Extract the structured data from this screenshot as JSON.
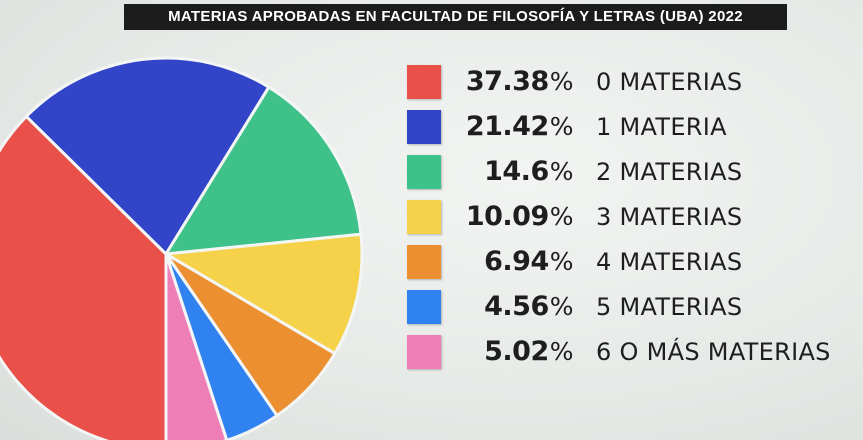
{
  "chart_data": {
    "type": "pie",
    "title": "MATERIAS APROBADAS EN FACULTAD DE FILOSOFÍA Y LETRAS (UBA) 2022",
    "percent_sign": "%",
    "legend_position": "right",
    "slices": [
      {
        "label": "0 MATERIAS",
        "value": 37.38,
        "value_text": "37.38",
        "color": "#e9504a"
      },
      {
        "label": "1 MATERIA",
        "value": 21.42,
        "value_text": "21.42",
        "color": "#3244c8"
      },
      {
        "label": "2 MATERIAS",
        "value": 14.6,
        "value_text": "14.6",
        "color": "#3ec289"
      },
      {
        "label": "3 MATERIAS",
        "value": 10.09,
        "value_text": "10.09",
        "color": "#f5d24a"
      },
      {
        "label": "4 MATERIAS",
        "value": 6.94,
        "value_text": "6.94",
        "color": "#ec8f30"
      },
      {
        "label": "5 MATERIAS",
        "value": 4.56,
        "value_text": "4.56",
        "color": "#2f82f0"
      },
      {
        "label": "6 O MÁS MATERIAS",
        "value": 5.02,
        "value_text": "5.02",
        "color": "#ee7fb6"
      }
    ]
  }
}
